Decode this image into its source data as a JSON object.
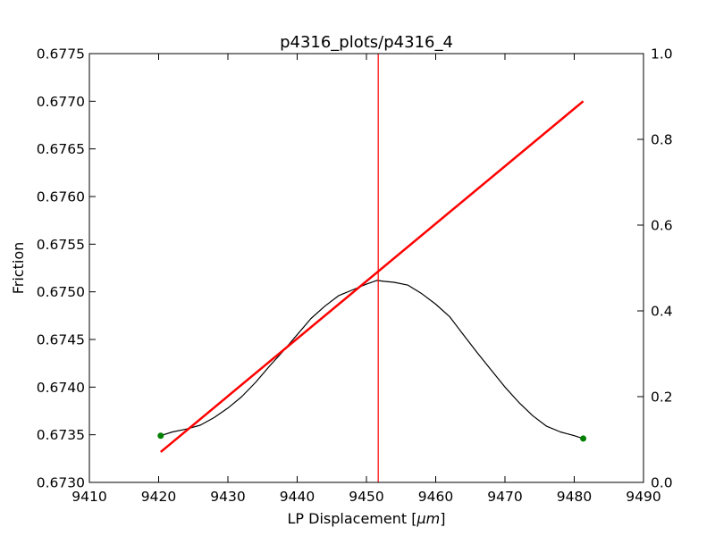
{
  "chart_data": {
    "type": "line",
    "title": "p4316_plots/p4316_4",
    "xlabel": "LP Displacement [",
    "xlabel_unit": "μm",
    "xlabel_close": "]",
    "ylabel": "Friction",
    "xlim": [
      9410,
      9490
    ],
    "ylim": [
      0.673,
      0.6775
    ],
    "y2lim": [
      0.0,
      1.0
    ],
    "x_ticks": [
      "9410",
      "9420",
      "9430",
      "9440",
      "9450",
      "9460",
      "9470",
      "9480",
      "9490"
    ],
    "y_ticks": [
      "0.6730",
      "0.6735",
      "0.6740",
      "0.6745",
      "0.6750",
      "0.6755",
      "0.6760",
      "0.6765",
      "0.6770",
      "0.6775"
    ],
    "y2_ticks": [
      "0.0",
      "0.2",
      "0.4",
      "0.6",
      "0.8",
      "1.0"
    ],
    "grid": false,
    "series": [
      {
        "color": "#000000",
        "style": "line",
        "x": [
          9420.3,
          9422.0,
          9424.0,
          9426.0,
          9428.0,
          9430.0,
          9432.0,
          9434.0,
          9436.0,
          9438.0,
          9440.0,
          9442.0,
          9444.0,
          9446.0,
          9448.0,
          9450.0,
          9451.5,
          9452.5,
          9454.0,
          9456.0,
          9458.0,
          9460.0,
          9462.0,
          9464.0,
          9466.0,
          9468.0,
          9470.0,
          9472.0,
          9474.0,
          9476.0,
          9478.0,
          9480.0,
          9481.3
        ],
        "y": [
          0.67349,
          0.67353,
          0.67356,
          0.6736,
          0.67368,
          0.67378,
          0.6739,
          0.67405,
          0.67422,
          0.67438,
          0.67455,
          0.67472,
          0.67485,
          0.67496,
          0.67502,
          0.67508,
          0.67512,
          0.67511,
          0.6751,
          0.67507,
          0.67498,
          0.67487,
          0.67474,
          0.67455,
          0.67436,
          0.67418,
          0.674,
          0.67384,
          0.6737,
          0.67359,
          0.67353,
          0.67349,
          0.67346
        ]
      },
      {
        "color": "#ff0000",
        "style": "thick-line",
        "x": [
          9420.3,
          9481.3
        ],
        "y": [
          0.67332,
          0.677
        ]
      },
      {
        "color": "#008000",
        "style": "points",
        "x": [
          9420.3,
          9481.3
        ],
        "y": [
          0.67349,
          0.67346
        ]
      }
    ],
    "vline": {
      "x": 9451.7,
      "color": "#ff0000"
    }
  }
}
